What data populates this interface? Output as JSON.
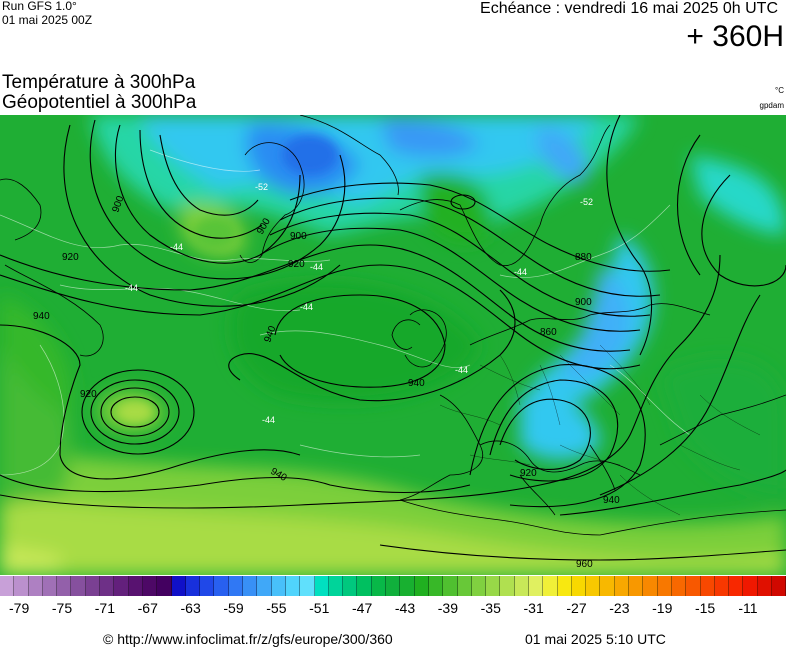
{
  "header": {
    "run": "Run GFS 1.0°",
    "run_date": "01 mai 2025 00Z",
    "valid": "Echéance : vendredi 16 mai 2025 0h UTC",
    "lead": "+ 360H",
    "title_temp": "Température à 300hPa",
    "title_geo": "Géopotentiel à 300hPa",
    "unit_temp": "°C",
    "unit_geo": "gpdam"
  },
  "map": {
    "geopotential_labels": [
      "900",
      "920",
      "900",
      "880",
      "860",
      "900",
      "940",
      "920",
      "940",
      "940",
      "920",
      "900",
      "920",
      "940",
      "940",
      "960"
    ],
    "temperature_labels": [
      "-44",
      "-44",
      "-44",
      "-52",
      "-52",
      "-44",
      "-44",
      "-44",
      "-44"
    ]
  },
  "colorbar": {
    "colors": [
      "#c8a0d8",
      "#bb90cd",
      "#ae80c2",
      "#a070b6",
      "#9360aa",
      "#86509e",
      "#7a4092",
      "#6e3087",
      "#63207c",
      "#581270",
      "#4d0866",
      "#430060",
      "#1010c8",
      "#1830dc",
      "#2048e8",
      "#2860f0",
      "#3078f4",
      "#3890f6",
      "#40a8f8",
      "#48c0fa",
      "#50d4fc",
      "#60e0fc",
      "#00e0c0",
      "#00d49a",
      "#00c87e",
      "#00c060",
      "#08b848",
      "#10b03c",
      "#18b030",
      "#20b020",
      "#38b828",
      "#50c030",
      "#68c838",
      "#80d040",
      "#98d848",
      "#b0e050",
      "#c8e858",
      "#e0f060",
      "#f0f038",
      "#f8e810",
      "#f8d800",
      "#f8c800",
      "#f8b800",
      "#f8a800",
      "#f89800",
      "#f88800",
      "#f87800",
      "#f86800",
      "#f85800",
      "#f84800",
      "#f83800",
      "#f82800",
      "#f01800",
      "#e01000",
      "#d00800"
    ],
    "ticks": [
      "-79",
      "-75",
      "-71",
      "-67",
      "-63",
      "-59",
      "-55",
      "-51",
      "-47",
      "-43",
      "-39",
      "-35",
      "-31",
      "-27",
      "-23",
      "-19",
      "-15",
      "-11"
    ]
  },
  "footer": {
    "copyright": "© http://www.infoclimat.fr/z/gfs/europe/300/360",
    "generated": "01 mai 2025  5:10 UTC"
  }
}
